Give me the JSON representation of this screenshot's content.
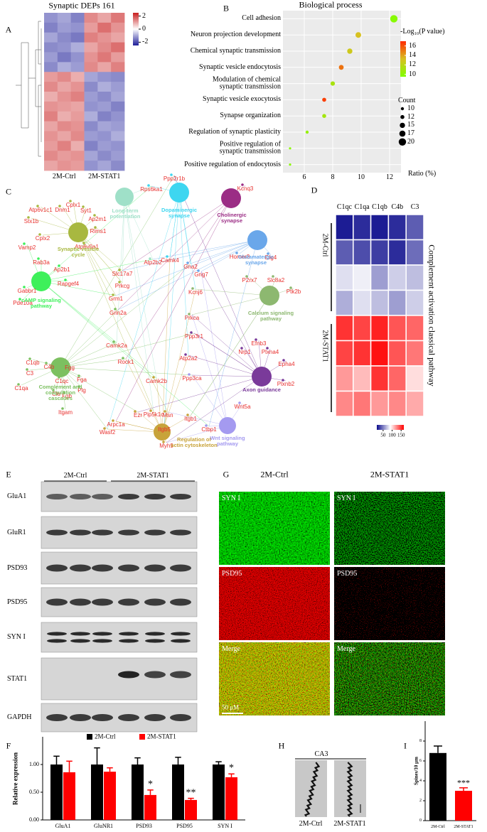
{
  "panel_labels": [
    "A",
    "B",
    "C",
    "D",
    "E",
    "F",
    "G",
    "H",
    "I"
  ],
  "chart_data": [
    {
      "type": "heatmap",
      "title": "Synaptic DEPs 161",
      "x_groups": [
        "2M-Ctrl",
        "2M-STAT1"
      ],
      "values": [
        [
          -1.2,
          -1.0,
          -1.4,
          1.3,
          1.0,
          1.5
        ],
        [
          -1.4,
          -1.1,
          -1.2,
          1.1,
          1.6,
          1.2
        ],
        [
          -1.0,
          -1.3,
          -1.5,
          1.4,
          1.2,
          1.0
        ],
        [
          -1.3,
          -1.2,
          -0.9,
          1.0,
          1.3,
          1.6
        ],
        [
          -1.1,
          -1.5,
          -1.2,
          1.2,
          1.5,
          1.1
        ],
        [
          -1.3,
          -0.9,
          -1.1,
          1.3,
          1.0,
          1.4
        ],
        [
          1.1,
          1.3,
          0.9,
          -1.0,
          -1.2,
          -1.3
        ],
        [
          1.3,
          1.0,
          1.2,
          -1.3,
          -0.9,
          -1.1
        ],
        [
          0.9,
          1.2,
          1.4,
          -1.1,
          -1.3,
          -1.0
        ],
        [
          1.2,
          1.1,
          1.0,
          -1.2,
          -1.1,
          -1.4
        ],
        [
          1.4,
          0.9,
          1.1,
          -0.9,
          -1.4,
          -1.2
        ],
        [
          1.0,
          1.3,
          1.2,
          -1.3,
          -1.0,
          -1.1
        ],
        [
          1.2,
          1.0,
          1.3,
          -1.1,
          -1.2,
          -0.9
        ],
        [
          1.1,
          1.4,
          0.9,
          -1.4,
          -1.1,
          -1.2
        ],
        [
          1.3,
          1.1,
          1.2,
          -1.0,
          -1.3,
          -1.1
        ],
        [
          1.0,
          1.2,
          1.1,
          -1.2,
          -1.0,
          -1.3
        ]
      ],
      "zlim": [
        -2.5,
        2.5
      ],
      "zticks": [
        2,
        0,
        -2
      ],
      "colors": [
        "#1f1f9a",
        "#ffffff",
        "#c81e1e"
      ]
    },
    {
      "type": "dot",
      "title": "Biological process",
      "categories": [
        "Cell adhesion",
        "Neuron projection development",
        "Chemical synaptic transmission",
        "Synaptic vesicle endocytosis",
        "Modulation of chemical\nsynaptic transmission",
        "Synaptic vesicle exocytosis",
        "Synapse organization",
        "Regulation of synaptic plasticity",
        "Positive regulation of\nsynaptic transmission",
        "Positive regulation of endocytosis"
      ],
      "values": [
        12.3,
        9.8,
        9.2,
        8.6,
        8.0,
        7.4,
        7.4,
        6.2,
        5.0,
        5.0
      ],
      "neglog_p": [
        9.8,
        13.2,
        12.8,
        15.2,
        11.2,
        16.5,
        11.0,
        10.4,
        10.0,
        10.0
      ],
      "count": [
        20,
        16,
        15,
        14,
        13,
        12,
        12,
        10,
        8,
        8
      ],
      "xlim": [
        4.5,
        12.8
      ],
      "xticks": [
        6,
        8,
        10,
        12
      ],
      "xlabel": "Ratio (%)",
      "grid": true,
      "color_title": "-Log₁₀(P value)",
      "color_lim": [
        9.5,
        17
      ],
      "color_ticks": [
        16,
        14,
        12,
        10
      ],
      "colors": [
        "#80ff00",
        "#d8c020",
        "#ff2a00"
      ],
      "size_title": "Count",
      "size_ticks": [
        10,
        12,
        15,
        17,
        20
      ]
    },
    {
      "type": "heatmap",
      "title": "Complement activation classical pathway",
      "categories": [
        "C1qc",
        "C1qa",
        "C1qb",
        "C4b",
        "C3"
      ],
      "row_groups": [
        "2M-Ctrl",
        "2M-STAT1"
      ],
      "values": [
        [
          20,
          25,
          20,
          25,
          40
        ],
        [
          40,
          35,
          30,
          25,
          45
        ],
        [
          80,
          85,
          60,
          75,
          70
        ],
        [
          65,
          80,
          70,
          60,
          75
        ],
        [
          150,
          145,
          155,
          140,
          135
        ],
        [
          145,
          150,
          160,
          140,
          130
        ],
        [
          120,
          110,
          150,
          135,
          100
        ],
        [
          125,
          130,
          120,
          125,
          115
        ]
      ],
      "zlim": [
        15,
        165
      ],
      "zticks": [
        50,
        100,
        150
      ],
      "colors": [
        "#0c0c8c",
        "#ffffff",
        "#ff0000"
      ]
    },
    {
      "type": "bar",
      "categories": [
        "GluA1",
        "GluNR1",
        "PSD93",
        "PSD95",
        "SYN I"
      ],
      "series": [
        {
          "name": "2M-Ctrl",
          "color": "#000000",
          "values": [
            1,
            1,
            1,
            1,
            1
          ],
          "errors": [
            0.15,
            0.3,
            0.12,
            0.13,
            0.05
          ]
        },
        {
          "name": "2M-STAT1",
          "color": "#ff0000",
          "values": [
            0.86,
            0.87,
            0.45,
            0.36,
            0.77
          ],
          "errors": [
            0.2,
            0.07,
            0.09,
            0.03,
            0.06
          ]
        }
      ],
      "significance": [
        null,
        null,
        "*",
        "**",
        "*"
      ],
      "ylabel": "Relative expression",
      "ylim": [
        0,
        1.5
      ],
      "yticks": [
        {
          "value": 0,
          "label": "0.00"
        },
        {
          "value": 0.5,
          "label": "0.50"
        },
        {
          "value": 1,
          "label": "1.00"
        }
      ]
    },
    {
      "type": "bar",
      "categories": [
        "2M-Ctrl",
        "2M-STAT1"
      ],
      "values": [
        6.8,
        3.0
      ],
      "errors": [
        0.7,
        0.3
      ],
      "colors": [
        "#000000",
        "#ff0000"
      ],
      "significance": [
        null,
        "***"
      ],
      "ylabel": "Spines/10 μm",
      "ylim": [
        0,
        10
      ],
      "yticks": [
        0,
        2,
        4,
        6,
        8
      ]
    }
  ],
  "network": {
    "gene_color": "#e8302e",
    "pathways": [
      {
        "label": "Long-term\npotentiation",
        "color": "#9fe0c8"
      },
      {
        "label": "Dopaminergic\nsynapse",
        "color": "#3ed6f0"
      },
      {
        "label": "Cholinergic\nsynapse",
        "color": "#9b2d85"
      },
      {
        "label": "Synaptic vesicle\ncycle",
        "color": "#a8b840"
      },
      {
        "label": "Glutamatergic\nsynapse",
        "color": "#6aa7ea"
      },
      {
        "label": "cAMP signaling\npathway",
        "color": "#3ef05a"
      },
      {
        "label": "Calcium signaling\npathway",
        "color": "#8db870"
      },
      {
        "label": "Complement and\ncoagulation\ncascades",
        "color": "#7cc060"
      },
      {
        "label": "Axon guidance",
        "color": "#7a3a9a"
      },
      {
        "label": "Regulation of\nactin cytoskeleton",
        "color": "#c8a33a"
      },
      {
        "label": "Wnt signaling\npathway",
        "color": "#a49af0"
      }
    ],
    "genes": [
      "Rps6ka1",
      "Ppp2r1b",
      "Kcnq3",
      "Cplx1",
      "Syt1",
      "Atp6v1c1",
      "Dnm1",
      "Ap2m1",
      "Stx1b",
      "Rims1",
      "Cplx2",
      "Vamp2",
      "Atp6v0a1",
      "Rab3a",
      "Ap2b1",
      "Homer3",
      "Dlg4",
      "Camk4",
      "Atp2b2",
      "Gna2",
      "Gng7",
      "Slc17a7",
      "Rapgef4",
      "Gabbr1",
      "Prkcg",
      "P2rx7",
      "Slc8a2",
      "Ptk2b",
      "Kcnj6",
      "Grm1",
      "Pde10a",
      "Prkca",
      "Grin2a",
      "Camk2a",
      "Ppp3r1",
      "Efnb3",
      "Nrp1",
      "Plxna4",
      "Rock1",
      "Atp2a2",
      "Epha4",
      "C1qb",
      "C4b",
      "Fgg",
      "Camk2b",
      "Ppp3ca",
      "C3",
      "C1qc",
      "Fga",
      "Plxnb2",
      "C1qa",
      "Clu",
      "Plg",
      "Fgb",
      "Wnt5a",
      "Itgam",
      "Ezr",
      "Pip5k1c",
      "Msn",
      "Itgb1",
      "Arpc1a",
      "Itgb5",
      "Ctbp1",
      "Wasf2",
      "Myh9"
    ]
  },
  "blot": {
    "groups": [
      "2M-Ctrl",
      "2M-STAT1"
    ],
    "proteins": [
      "GluA1",
      "GluR1",
      "PSD93",
      "PSD95",
      "SYN I",
      "STAT1",
      "GAPDH"
    ]
  },
  "microscopy": {
    "groups": [
      "2M-Ctrl",
      "2M-STAT1"
    ],
    "channels": [
      "SYN I",
      "PSD95",
      "Merge"
    ],
    "scale_bar": "50 μM"
  },
  "dendrites": {
    "region": "CA3",
    "groups": [
      "2M-Ctrl",
      "2M-STAT1"
    ]
  }
}
